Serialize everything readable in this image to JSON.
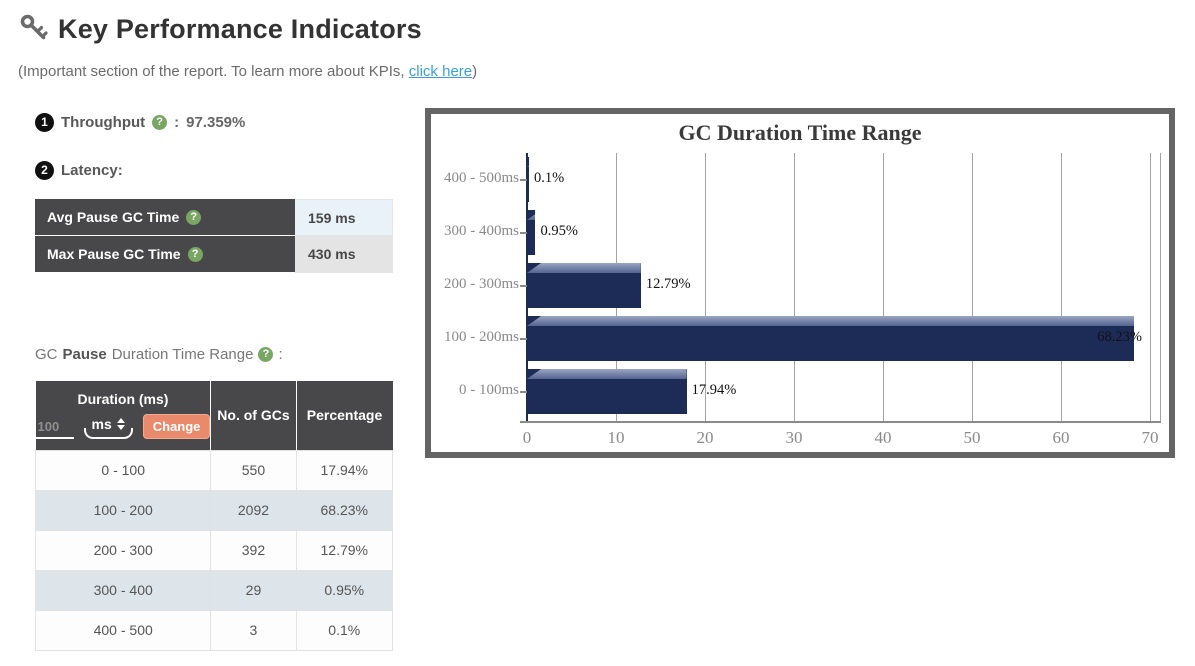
{
  "header": {
    "title": "Key Performance Indicators",
    "subtitle_prefix": "(Important section of the report. To learn more about KPIs, ",
    "subtitle_link": "click here",
    "subtitle_suffix": ")"
  },
  "icons": {
    "help_glyph": "?"
  },
  "kpi": {
    "throughput": {
      "index": "1",
      "label": "Throughput",
      "separator": ":",
      "value": "97.359%"
    },
    "latency": {
      "index": "2",
      "label": "Latency:"
    }
  },
  "pause_table": {
    "rows": [
      {
        "label": "Avg Pause GC Time",
        "value": "159 ms"
      },
      {
        "label": "Max Pause GC Time",
        "value": "430 ms"
      }
    ]
  },
  "duration_heading": {
    "prefix": "GC ",
    "bold": "Pause",
    "suffix": " Duration Time Range",
    "colon": ":"
  },
  "duration_table": {
    "headers": {
      "col1": "Duration (ms)",
      "col2": "No. of GCs",
      "col3": "Percentage"
    },
    "input_placeholder": "100",
    "unit_selected": "ms",
    "change_label": "Change",
    "rows": [
      {
        "duration": "0 - 100",
        "count": "550",
        "percentage": "17.94%"
      },
      {
        "duration": "100 - 200",
        "count": "2092",
        "percentage": "68.23%"
      },
      {
        "duration": "200 - 300",
        "count": "392",
        "percentage": "12.79%"
      },
      {
        "duration": "300 - 400",
        "count": "29",
        "percentage": "0.95%"
      },
      {
        "duration": "400 - 500",
        "count": "3",
        "percentage": "0.1%"
      }
    ]
  },
  "chart_data": {
    "type": "bar",
    "orientation": "horizontal",
    "title": "GC Duration Time Range",
    "categories": [
      "400 - 500ms",
      "300 - 400ms",
      "200 - 300ms",
      "100 - 200ms",
      "0 - 100ms"
    ],
    "values": [
      0.1,
      0.95,
      12.79,
      68.23,
      17.94
    ],
    "value_labels": [
      "0.1%",
      "0.95%",
      "12.79%",
      "68.23%",
      "17.94%"
    ],
    "xlabel": "",
    "ylabel": "",
    "xlim": [
      0,
      70
    ],
    "xticks": [
      0,
      10,
      20,
      30,
      40,
      50,
      60,
      70
    ],
    "grid": true,
    "legend": false,
    "bar_color": "#1d2b57"
  },
  "colors": {
    "header_dark": "#48484a",
    "accent_orange": "#e98a6d",
    "help_green": "#79a663",
    "link_blue": "#38a1d8",
    "bar_navy": "#1d2b57",
    "stripe_blue": "#dde4ea",
    "chart_border": "#656565"
  }
}
